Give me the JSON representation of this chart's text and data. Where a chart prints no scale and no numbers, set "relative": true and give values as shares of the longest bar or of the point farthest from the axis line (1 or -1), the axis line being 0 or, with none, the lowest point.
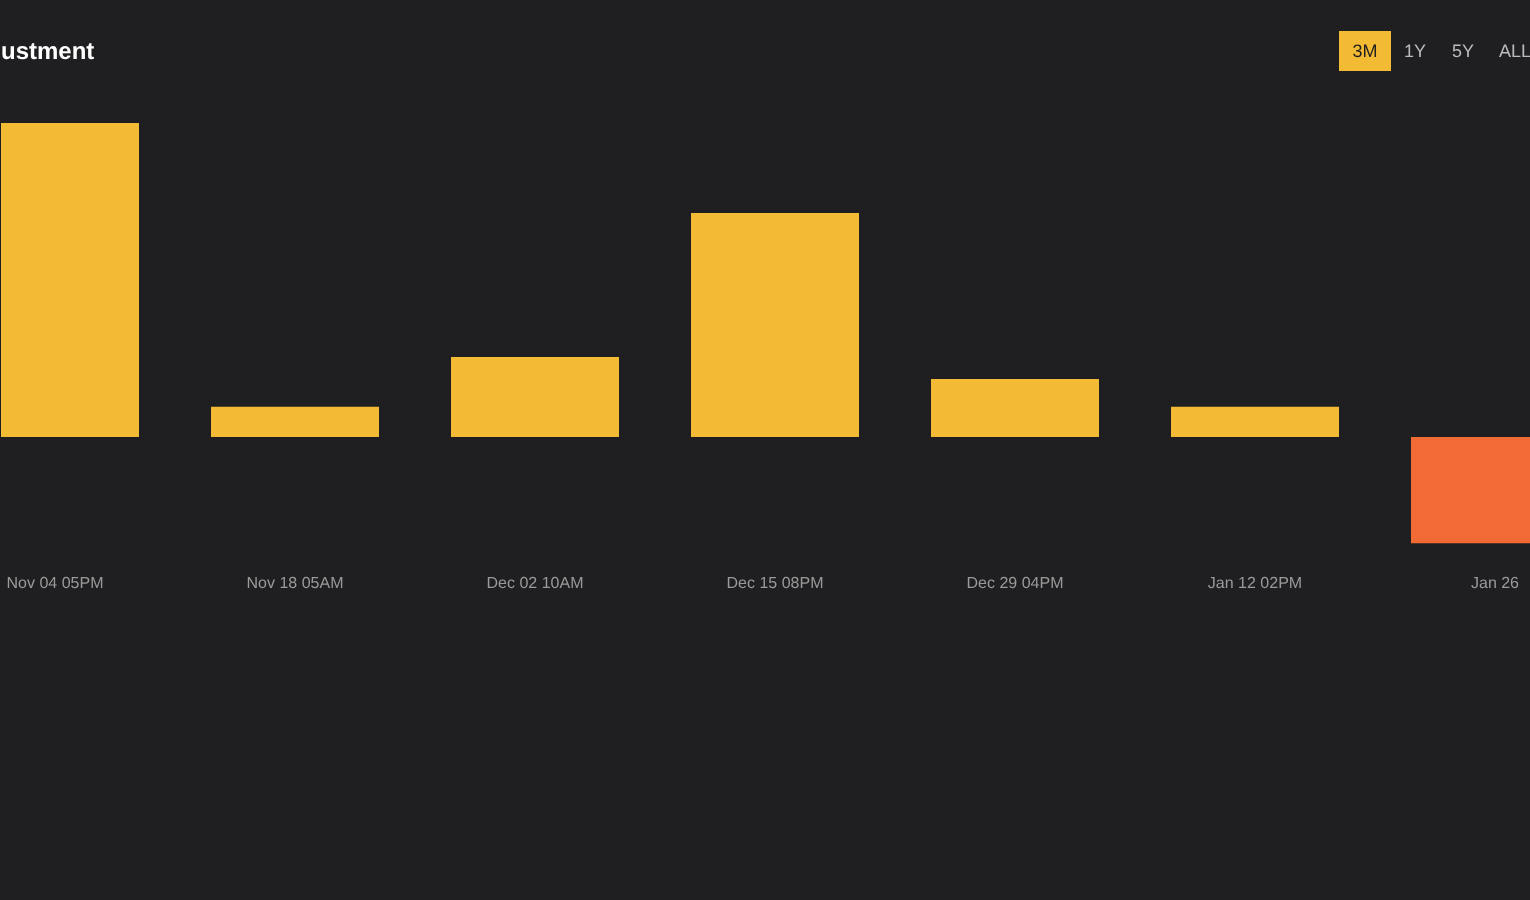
{
  "chart_data": {
    "type": "bar",
    "title": "ustment",
    "relative": true,
    "categories": [
      "Nov 04 05PM",
      "Nov 18 05AM",
      "Dec 02 10AM",
      "Dec 15 08PM",
      "Dec 29 04PM",
      "Jan 12 02PM",
      "Jan 26"
    ],
    "values": [
      1,
      0.096,
      0.255,
      0.713,
      0.185,
      0.096,
      -0.338
    ],
    "colors": [
      "#f2bb33",
      "#f2bb33",
      "#f2bb33",
      "#f2bb33",
      "#f2bb33",
      "#f2bb33",
      "#f26b35"
    ],
    "annotations": [
      "3M",
      "1Y",
      "5Y",
      "ALL"
    ],
    "grid": false
  }
}
